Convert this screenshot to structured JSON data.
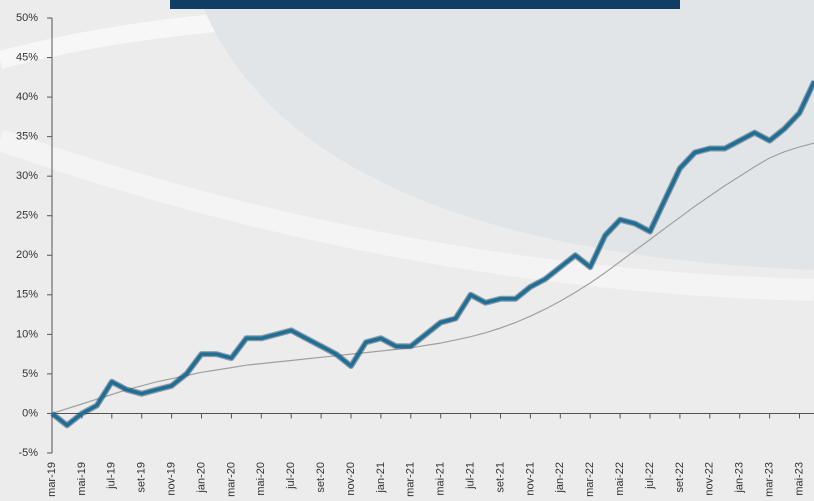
{
  "chart_data": {
    "type": "line",
    "categories": [
      "mar-19",
      null,
      "mai-19",
      null,
      "jul-19",
      null,
      "set-19",
      null,
      "nov-19",
      null,
      "jan-20",
      null,
      "mar-20",
      null,
      "mai-20",
      null,
      "jul-20",
      null,
      "set-20",
      null,
      "nov-20",
      null,
      "jan-21",
      null,
      "mar-21",
      null,
      "mai-21",
      null,
      "jul-21",
      null,
      "set-21",
      null,
      "nov-21",
      null,
      "jan-22",
      null,
      "mar-22",
      null,
      "mai-22",
      null,
      "jul-22",
      null,
      "set-22",
      null,
      "nov-22",
      null,
      "jan-23",
      null,
      "mar-23",
      null,
      "mai-23",
      null
    ],
    "series": [
      {
        "color": "#1f6e96",
        "values": [
          0,
          -1.5,
          0,
          1,
          4,
          3,
          2.5,
          3,
          3.5,
          5,
          7.5,
          7.5,
          7,
          9.5,
          9.5,
          10,
          10.5,
          9.5,
          8.5,
          7.5,
          6,
          9,
          9.5,
          8.5,
          8.5,
          10,
          11.5,
          12,
          15,
          14,
          14.5,
          14.5,
          16,
          17,
          18.5,
          20,
          18.5,
          22.5,
          24.5,
          24,
          23,
          27,
          31,
          33,
          33.5,
          33.5,
          34.5,
          35.5,
          34.5,
          36,
          38,
          42
        ]
      },
      {
        "color": "#a0a0a0",
        "values": [
          0,
          0.6,
          1.2,
          1.8,
          2.4,
          3,
          3.5,
          4,
          4.4,
          4.8,
          5.2,
          5.5,
          5.8,
          6.1,
          6.3,
          6.5,
          6.7,
          6.9,
          7.1,
          7.3,
          7.5,
          7.7,
          7.9,
          8.1,
          8.3,
          8.6,
          8.9,
          9.3,
          9.7,
          10.2,
          10.8,
          11.5,
          12.3,
          13.2,
          14.2,
          15.3,
          16.5,
          17.8,
          19.2,
          20.6,
          22,
          23.4,
          24.8,
          26.2,
          27.5,
          28.8,
          30,
          31.2,
          32.3,
          33.1,
          33.7,
          34.2
        ]
      }
    ],
    "ylim": [
      -5,
      50
    ],
    "yticks": [
      {
        "value": -5,
        "label": "-5%"
      },
      {
        "value": 0,
        "label": "0%"
      },
      {
        "value": 5,
        "label": "5%"
      },
      {
        "value": 10,
        "label": "10%"
      },
      {
        "value": 15,
        "label": "15%"
      },
      {
        "value": 20,
        "label": "20%"
      },
      {
        "value": 25,
        "label": "25%"
      },
      {
        "value": 30,
        "label": "30%"
      },
      {
        "value": 35,
        "label": "35%"
      },
      {
        "value": 40,
        "label": "40%"
      },
      {
        "value": 45,
        "label": "45%"
      },
      {
        "value": 50,
        "label": "50%"
      }
    ]
  }
}
